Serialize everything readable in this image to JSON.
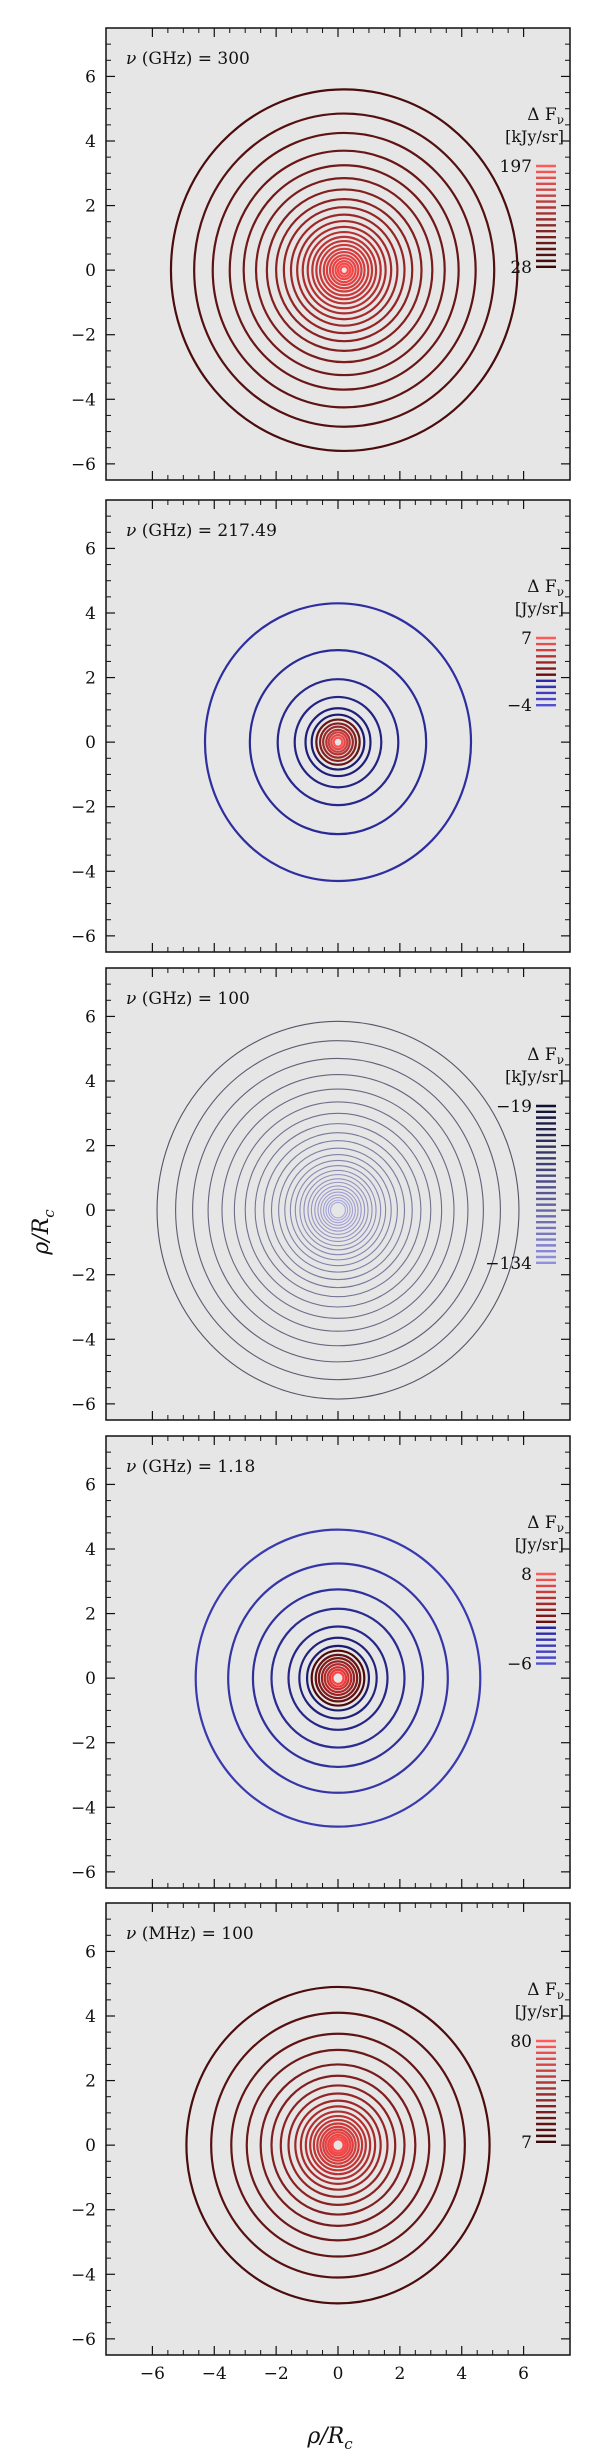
{
  "figure": {
    "xlabel": "ρ/R",
    "xlabel_sub": "c",
    "ylabel": "ρ/R",
    "ylabel_sub": "c",
    "background": "#e6e6e6"
  },
  "chart_data": [
    {
      "type": "contour",
      "title_sym": "ν",
      "title_unit": "(GHz)",
      "title_value": "= 300",
      "legend_title": "Δ F",
      "legend_sub": "ν",
      "legend_unit": "[kJy/sr]",
      "legend_top": "197",
      "legend_bottom": "28",
      "xlim": [
        -7.5,
        7.5
      ],
      "ylim": [
        -6.5,
        7.5
      ],
      "xticks": [
        -6,
        -4,
        -2,
        0,
        2,
        4,
        6
      ],
      "yticks": [
        -6,
        -4,
        -2,
        0,
        2,
        4,
        6
      ],
      "center": [
        0.2,
        0.0
      ],
      "contour_radii": [
        5.6,
        4.85,
        4.25,
        3.7,
        3.25,
        2.85,
        2.5,
        2.2,
        1.95,
        1.72,
        1.52,
        1.34,
        1.18,
        1.03,
        0.9,
        0.78,
        0.66,
        0.56,
        0.46,
        0.37,
        0.28,
        0.2,
        0.12
      ],
      "palette": "dark-red-to-red",
      "legend_swatches": 18
    },
    {
      "type": "contour",
      "title_sym": "ν",
      "title_unit": "(GHz)",
      "title_value": "= 217.49",
      "legend_title": "Δ F",
      "legend_sub": "ν",
      "legend_unit": "[Jy/sr]",
      "legend_top": "7",
      "legend_bottom": "−4",
      "xlim": [
        -7.5,
        7.5
      ],
      "ylim": [
        -6.5,
        7.5
      ],
      "xticks": [
        -6,
        -4,
        -2,
        0,
        2,
        4,
        6
      ],
      "yticks": [
        -6,
        -4,
        -2,
        0,
        2,
        4,
        6
      ],
      "center": [
        0.0,
        0.0
      ],
      "contour_radii": [
        4.3,
        2.85,
        1.95,
        1.4,
        1.05,
        0.85,
        0.7,
        0.58,
        0.48,
        0.38,
        0.3,
        0.22,
        0.14
      ],
      "palette": "blue-to-red",
      "legend_swatches": 12
    },
    {
      "type": "contour",
      "title_sym": "ν",
      "title_unit": "(GHz)",
      "title_value": "= 100",
      "legend_title": "Δ F",
      "legend_sub": "ν",
      "legend_unit": "[kJy/sr]",
      "legend_top": "−19",
      "legend_bottom": "−134",
      "xlim": [
        -7.5,
        7.5
      ],
      "ylim": [
        -6.5,
        7.5
      ],
      "xticks": [
        -6,
        -4,
        -2,
        0,
        2,
        4,
        6
      ],
      "yticks": [
        -6,
        -4,
        -2,
        0,
        2,
        4,
        6
      ],
      "center": [
        0.0,
        0.0
      ],
      "contour_radii": [
        5.85,
        5.25,
        4.7,
        4.2,
        3.75,
        3.35,
        3.0,
        2.68,
        2.4,
        2.15,
        1.92,
        1.72,
        1.54,
        1.38,
        1.23,
        1.1,
        0.97,
        0.86,
        0.75,
        0.65,
        0.56,
        0.47,
        0.39,
        0.31,
        0.24
      ],
      "palette": "gray-to-blue",
      "legend_swatches": 28
    },
    {
      "type": "contour",
      "title_sym": "ν",
      "title_unit": "(GHz)",
      "title_value": "= 1.18",
      "legend_title": "Δ F",
      "legend_sub": "ν",
      "legend_unit": "[Jy/sr]",
      "legend_top": "8",
      "legend_bottom": "−6",
      "xlim": [
        -7.5,
        7.5
      ],
      "ylim": [
        -6.5,
        7.5
      ],
      "xticks": [
        -6,
        -4,
        -2,
        0,
        2,
        4,
        6
      ],
      "yticks": [
        -6,
        -4,
        -2,
        0,
        2,
        4,
        6
      ],
      "center": [
        0.0,
        0.0
      ],
      "contour_radii": [
        4.6,
        3.55,
        2.75,
        2.15,
        1.6,
        1.25,
        1.0,
        0.85,
        0.72,
        0.62,
        0.52,
        0.43,
        0.34,
        0.26,
        0.18
      ],
      "palette": "blue-to-red-dense",
      "legend_swatches": 16
    },
    {
      "type": "contour",
      "title_sym": "ν",
      "title_unit": "(MHz)",
      "title_value": "= 100",
      "legend_title": "Δ F",
      "legend_sub": "ν",
      "legend_unit": "[Jy/sr]",
      "legend_top": "80",
      "legend_bottom": "7",
      "xlim": [
        -7.5,
        7.5
      ],
      "ylim": [
        -6.5,
        7.5
      ],
      "xticks": [
        -6,
        -4,
        -2,
        0,
        2,
        4,
        6
      ],
      "yticks": [
        -6,
        -4,
        -2,
        0,
        2,
        4,
        6
      ],
      "center": [
        0.0,
        0.0
      ],
      "contour_radii": [
        4.9,
        4.1,
        3.45,
        2.95,
        2.5,
        2.15,
        1.85,
        1.6,
        1.38,
        1.2,
        1.04,
        0.9,
        0.78,
        0.67,
        0.57,
        0.48,
        0.4,
        0.32,
        0.25,
        0.18
      ],
      "palette": "dark-red-to-red",
      "legend_swatches": 18
    }
  ]
}
